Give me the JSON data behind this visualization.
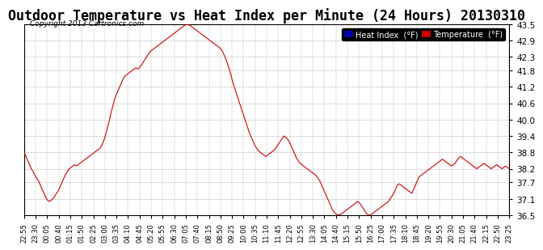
{
  "title": "Outdoor Temperature vs Heat Index per Minute (24 Hours) 20130310",
  "copyright": "Copyright 2013 Cartronics.com",
  "ylim": [
    36.5,
    43.5
  ],
  "yticks": [
    36.5,
    37.1,
    37.7,
    38.2,
    38.8,
    39.4,
    40.0,
    40.6,
    41.2,
    41.8,
    42.3,
    42.9,
    43.5
  ],
  "bg_color": "#ffffff",
  "grid_color": "#bbbbbb",
  "line_color": "#cc0000",
  "title_fontsize": 12,
  "legend_heat_index_bg": "#0000aa",
  "legend_temp_bg": "#cc0000",
  "x_labels": [
    "22:55",
    "23:30",
    "00:05",
    "00:40",
    "01:15",
    "01:50",
    "02:25",
    "03:00",
    "03:35",
    "04:10",
    "04:45",
    "05:20",
    "05:55",
    "06:30",
    "07:05",
    "07:40",
    "08:15",
    "08:50",
    "09:25",
    "10:00",
    "10:35",
    "11:10",
    "11:45",
    "12:20",
    "12:55",
    "13:30",
    "14:05",
    "14:40",
    "15:15",
    "15:50",
    "16:25",
    "17:00",
    "17:35",
    "18:10",
    "18:45",
    "19:20",
    "19:55",
    "20:30",
    "21:05",
    "21:40",
    "22:15",
    "22:50",
    "23:25"
  ],
  "temperature_data": [
    38.8,
    38.65,
    38.5,
    38.35,
    38.2,
    38.1,
    37.95,
    37.85,
    37.75,
    37.6,
    37.45,
    37.3,
    37.15,
    37.05,
    37.0,
    37.05,
    37.1,
    37.2,
    37.3,
    37.4,
    37.55,
    37.7,
    37.85,
    38.0,
    38.1,
    38.2,
    38.25,
    38.3,
    38.35,
    38.3,
    38.35,
    38.4,
    38.45,
    38.5,
    38.55,
    38.6,
    38.65,
    38.7,
    38.75,
    38.8,
    38.85,
    38.9,
    38.95,
    39.05,
    39.2,
    39.4,
    39.65,
    39.9,
    40.2,
    40.45,
    40.7,
    40.9,
    41.05,
    41.2,
    41.35,
    41.5,
    41.6,
    41.65,
    41.7,
    41.75,
    41.8,
    41.85,
    41.9,
    41.85,
    41.9,
    42.0,
    42.1,
    42.2,
    42.3,
    42.4,
    42.5,
    42.55,
    42.6,
    42.65,
    42.7,
    42.75,
    42.8,
    42.85,
    42.9,
    42.95,
    43.0,
    43.05,
    43.1,
    43.15,
    43.2,
    43.25,
    43.3,
    43.35,
    43.4,
    43.45,
    43.5,
    43.48,
    43.45,
    43.4,
    43.35,
    43.3,
    43.25,
    43.2,
    43.15,
    43.1,
    43.05,
    43.0,
    42.95,
    42.9,
    42.85,
    42.8,
    42.75,
    42.7,
    42.65,
    42.6,
    42.5,
    42.35,
    42.2,
    42.0,
    41.8,
    41.55,
    41.3,
    41.1,
    40.9,
    40.7,
    40.5,
    40.3,
    40.1,
    39.9,
    39.7,
    39.5,
    39.35,
    39.2,
    39.05,
    38.95,
    38.85,
    38.8,
    38.75,
    38.7,
    38.65,
    38.7,
    38.75,
    38.8,
    38.85,
    38.9,
    39.0,
    39.1,
    39.2,
    39.3,
    39.4,
    39.35,
    39.3,
    39.2,
    39.05,
    38.9,
    38.75,
    38.6,
    38.5,
    38.4,
    38.35,
    38.3,
    38.25,
    38.2,
    38.15,
    38.1,
    38.05,
    38.0,
    37.95,
    37.85,
    37.75,
    37.6,
    37.45,
    37.3,
    37.15,
    37.0,
    36.85,
    36.7,
    36.6,
    36.55,
    36.5,
    36.52,
    36.55,
    36.6,
    36.65,
    36.7,
    36.75,
    36.8,
    36.85,
    36.9,
    36.95,
    37.0,
    36.95,
    36.85,
    36.75,
    36.65,
    36.55,
    36.5,
    36.52,
    36.55,
    36.6,
    36.65,
    36.7,
    36.75,
    36.8,
    36.85,
    36.9,
    36.95,
    37.0,
    37.1,
    37.2,
    37.3,
    37.45,
    37.6,
    37.65,
    37.6,
    37.55,
    37.5,
    37.45,
    37.4,
    37.35,
    37.3,
    37.45,
    37.6,
    37.75,
    37.9,
    37.95,
    38.0,
    38.05,
    38.1,
    38.15,
    38.2,
    38.25,
    38.3,
    38.35,
    38.4,
    38.45,
    38.5,
    38.55,
    38.5,
    38.45,
    38.4,
    38.35,
    38.3,
    38.35,
    38.4,
    38.5,
    38.6,
    38.65,
    38.6,
    38.55,
    38.5,
    38.45,
    38.4,
    38.35,
    38.3,
    38.25,
    38.2,
    38.25,
    38.3,
    38.35,
    38.4,
    38.35,
    38.3,
    38.25,
    38.2,
    38.25,
    38.3,
    38.35,
    38.3,
    38.25,
    38.2,
    38.25,
    38.3,
    38.25,
    38.2
  ]
}
